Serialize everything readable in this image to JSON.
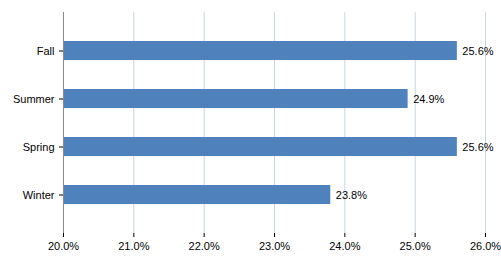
{
  "chart_data": {
    "type": "bar",
    "orientation": "horizontal",
    "categories": [
      "Fall",
      "Summer",
      "Spring",
      "Winter"
    ],
    "values": [
      25.6,
      24.9,
      25.6,
      23.8
    ],
    "value_labels": [
      "25.6%",
      "24.9%",
      "25.6%",
      "23.8%"
    ],
    "color": "#4f81bd",
    "xlim": [
      20,
      26
    ],
    "xticks": [
      {
        "value": 20,
        "label": "20.0%"
      },
      {
        "value": 21,
        "label": "21.0%"
      },
      {
        "value": 22,
        "label": "22.0%"
      },
      {
        "value": 23,
        "label": "23.0%"
      },
      {
        "value": 24,
        "label": "24.0%"
      },
      {
        "value": 25,
        "label": "25.0%"
      },
      {
        "value": 26,
        "label": "26.0%"
      }
    ],
    "grid": true,
    "data_labels": true
  }
}
